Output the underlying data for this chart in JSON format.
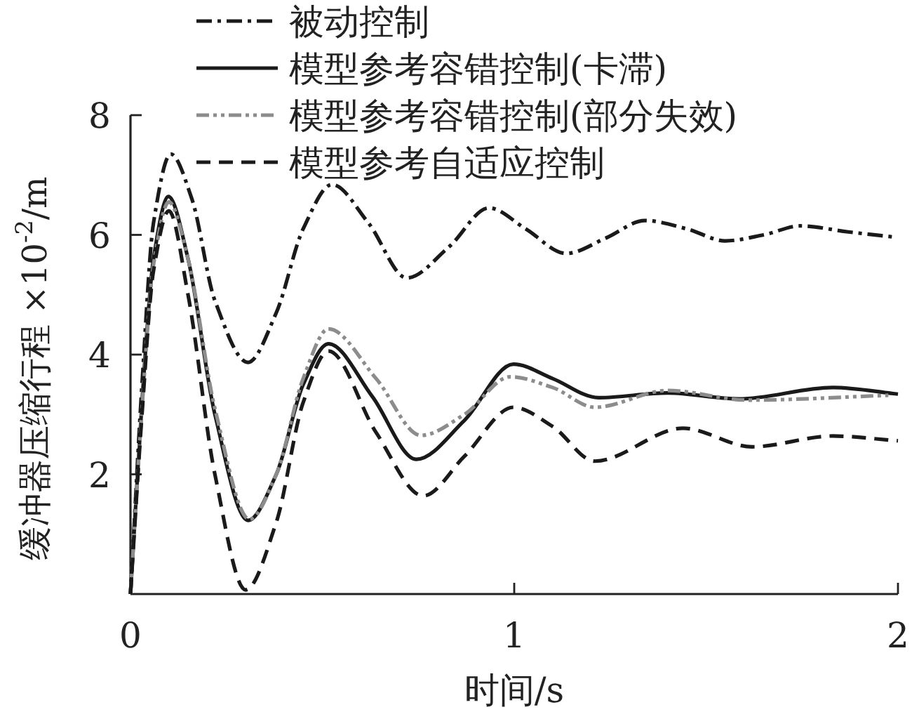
{
  "chart_data": {
    "type": "line",
    "xlabel": "时间/s",
    "ylabel": "缓冲器压缩行程 ×10$^{-2}$/m",
    "xlim": [
      0,
      2
    ],
    "ylim": [
      0,
      8
    ],
    "xticks": [
      0,
      1,
      2
    ],
    "yticks": [
      2,
      4,
      6,
      8
    ],
    "legend": "top",
    "grid": false,
    "series": [
      {
        "name": "被动控制",
        "color": "#1a1a1a",
        "line_style": "dashdot",
        "x": [
          0,
          0.03,
          0.06,
          0.105,
          0.16,
          0.22,
          0.306,
          0.38,
          0.45,
          0.525,
          0.62,
          0.72,
          0.83,
          0.934,
          1.03,
          1.135,
          1.24,
          1.34,
          1.45,
          1.55,
          1.65,
          1.745,
          1.87,
          1.995
        ],
        "values": [
          0,
          3.5,
          6.2,
          7.35,
          6.6,
          4.9,
          3.87,
          4.7,
          6.1,
          6.84,
          6.2,
          5.28,
          5.8,
          6.45,
          6.1,
          5.69,
          5.95,
          6.24,
          6.1,
          5.9,
          6.0,
          6.15,
          6.05,
          5.96
        ]
      },
      {
        "name": "模型参考容错控制(卡滞)",
        "color": "#1a1a1a",
        "line_style": "solid",
        "x": [
          0,
          0.03,
          0.06,
          0.099,
          0.15,
          0.22,
          0.306,
          0.38,
          0.45,
          0.516,
          0.63,
          0.745,
          0.87,
          0.998,
          1.1,
          1.22,
          1.4,
          1.585,
          1.83,
          2.0
        ],
        "values": [
          0,
          3.2,
          5.6,
          6.64,
          5.6,
          3.0,
          1.23,
          2.0,
          3.5,
          4.18,
          3.3,
          2.25,
          2.9,
          3.84,
          3.6,
          3.28,
          3.36,
          3.26,
          3.45,
          3.34
        ]
      },
      {
        "name": "模型参考容错控制(部分失效)",
        "color": "#8c8c8c",
        "line_style": "dashdotdot",
        "x": [
          0,
          0.03,
          0.06,
          0.1,
          0.15,
          0.22,
          0.31,
          0.38,
          0.45,
          0.516,
          0.64,
          0.757,
          0.87,
          0.99,
          1.1,
          1.21,
          1.4,
          1.61,
          1.975
        ],
        "values": [
          0,
          3.1,
          5.5,
          6.55,
          5.6,
          3.1,
          1.25,
          2.0,
          3.6,
          4.43,
          3.6,
          2.65,
          3.0,
          3.63,
          3.45,
          3.12,
          3.4,
          3.24,
          3.32
        ]
      },
      {
        "name": "模型参考自适应控制",
        "color": "#1a1a1a",
        "line_style": "dashed",
        "x": [
          0,
          0.03,
          0.06,
          0.1,
          0.15,
          0.22,
          0.3,
          0.38,
          0.45,
          0.516,
          0.64,
          0.763,
          0.87,
          0.998,
          1.1,
          1.21,
          1.44,
          1.62,
          1.83,
          2.0
        ],
        "values": [
          0,
          3.0,
          5.4,
          6.4,
          5.0,
          2.0,
          0.07,
          1.2,
          3.2,
          4.06,
          2.7,
          1.64,
          2.3,
          3.12,
          2.8,
          2.22,
          2.77,
          2.46,
          2.64,
          2.56
        ]
      }
    ]
  }
}
